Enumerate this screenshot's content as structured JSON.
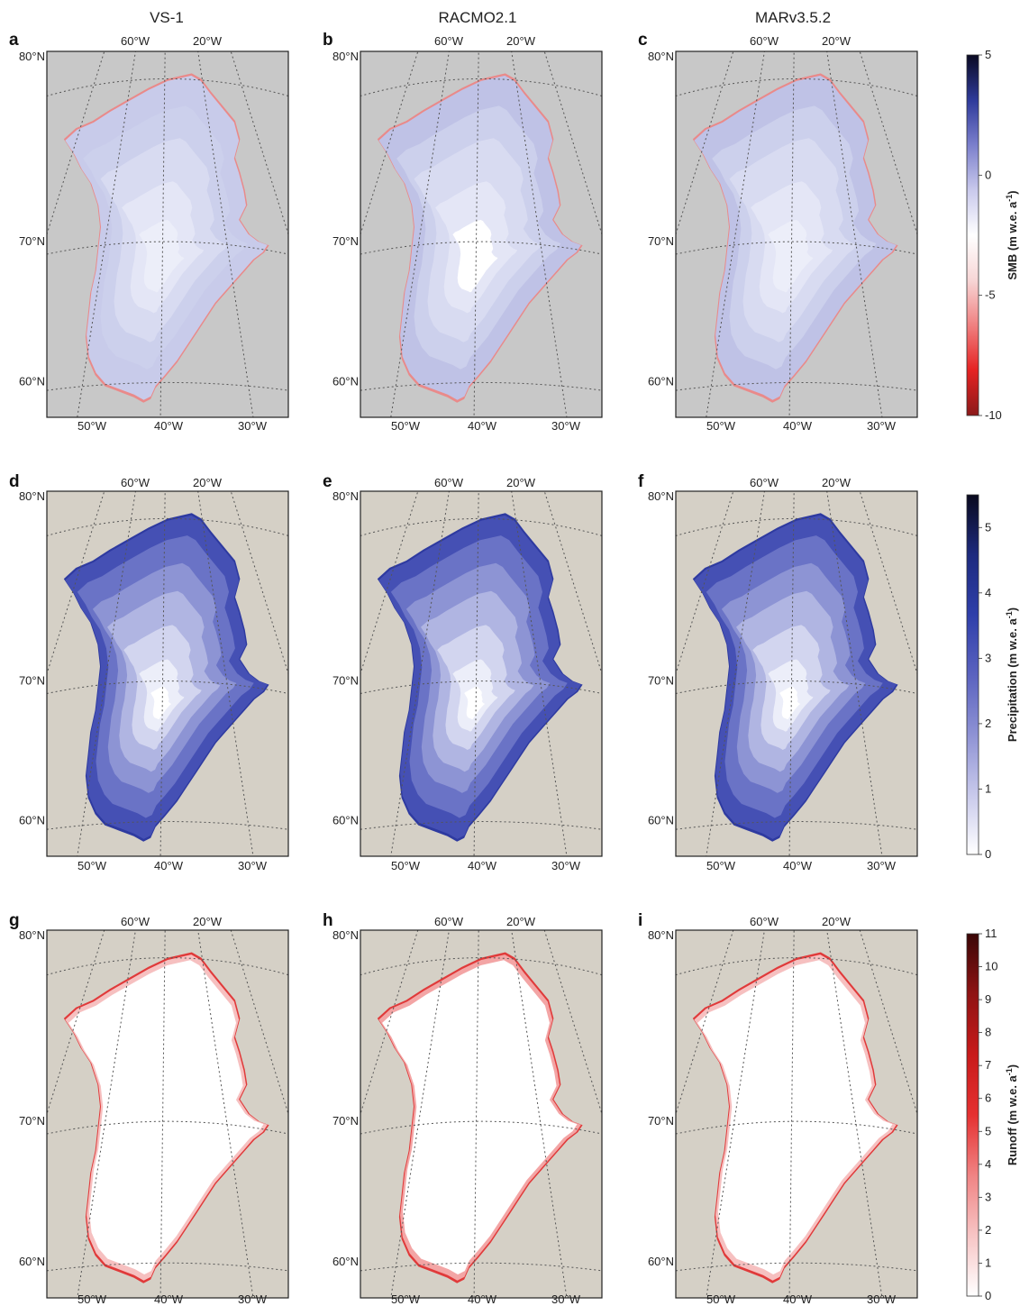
{
  "column_titles": [
    "VS-1",
    "RACMO2.1",
    "MARv3.5.2"
  ],
  "panel_letters": [
    [
      "a",
      "b",
      "c"
    ],
    [
      "d",
      "e",
      "f"
    ],
    [
      "g",
      "h",
      "i"
    ]
  ],
  "lat_labels": [
    "80°N",
    "70°N",
    "60°N"
  ],
  "lon_labels_top": [
    "60°W",
    "20°W"
  ],
  "lon_labels_bottom": [
    "50°W",
    "40°W",
    "30°W"
  ],
  "rows": [
    {
      "variable": "SMB",
      "background": "#c8c8c8",
      "colorbar": {
        "title": "SMB (m w.e. a",
        "title_sup": "-1",
        "title_end": ")",
        "min": -10,
        "max": 5,
        "ticks": [
          "5",
          "0",
          "-5",
          "-10"
        ],
        "tick_values": [
          5,
          0,
          -5,
          -10
        ],
        "colors": [
          "#8b1a1a",
          "#e52222",
          "#f08080",
          "#f7d6d6",
          "#ffffff",
          "#c9c9ec",
          "#7b7fcc",
          "#2e3a9a",
          "#0a0a22"
        ]
      }
    },
    {
      "variable": "Precipitation",
      "background": "#d5d0c6",
      "colorbar": {
        "title": "Precipitation (m w.e. a",
        "title_sup": "-1",
        "title_end": ")",
        "min": 0,
        "max": 5.5,
        "ticks": [
          "5",
          "4",
          "3",
          "2",
          "1",
          "0"
        ],
        "tick_values": [
          5,
          4,
          3,
          2,
          1,
          0
        ],
        "colors": [
          "#ffffff",
          "#c8c9eb",
          "#8e92d4",
          "#5a62bf",
          "#2f3faa",
          "#1d2a7e",
          "#0a0a1e"
        ]
      }
    },
    {
      "variable": "Runoff",
      "background": "#d5d0c6",
      "colorbar": {
        "title": "Runoff (m w.e. a",
        "title_sup": "-1",
        "title_end": ")",
        "min": 0,
        "max": 11,
        "ticks": [
          "11",
          "10",
          "9",
          "8",
          "7",
          "6",
          "5",
          "4",
          "3",
          "2",
          "1",
          "0"
        ],
        "tick_values": [
          11,
          10,
          9,
          8,
          7,
          6,
          5,
          4,
          3,
          2,
          1,
          0
        ],
        "colors": [
          "#ffffff",
          "#f7c5c5",
          "#f08383",
          "#e53131",
          "#c81a1a",
          "#8f1313",
          "#3a0606"
        ]
      }
    }
  ]
}
